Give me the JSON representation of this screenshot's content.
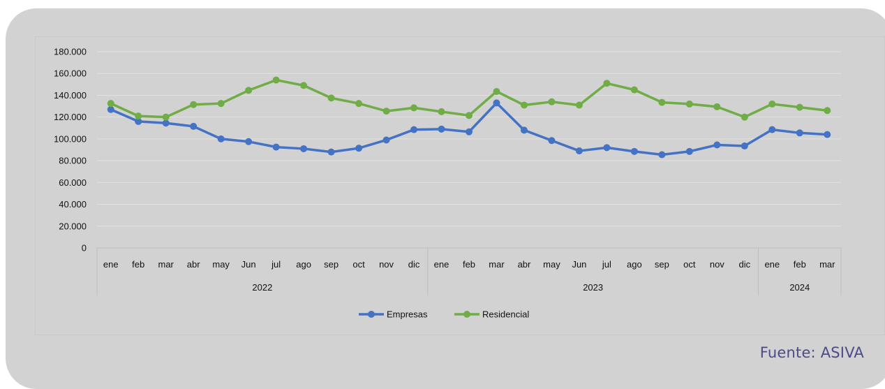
{
  "source": "Fuente: ASIVA",
  "colors": {
    "card": "#d2d2d2",
    "empresas": "#4472c4",
    "residencial": "#70ad47",
    "source_text": "#4b4a8a"
  },
  "chart_data": {
    "type": "line",
    "title": "",
    "xlabel": "",
    "ylabel": "",
    "ylim": [
      0,
      180000
    ],
    "yticks": [
      "0",
      "20.000",
      "40.000",
      "60.000",
      "80.000",
      "100.000",
      "120.000",
      "140.000",
      "160.000",
      "180.000"
    ],
    "categories": [
      "ene",
      "feb",
      "mar",
      "abr",
      "may",
      "Jun",
      "jul",
      "ago",
      "sep",
      "oct",
      "nov",
      "dic",
      "ene",
      "feb",
      "mar",
      "abr",
      "may",
      "Jun",
      "jul",
      "ago",
      "sep",
      "oct",
      "nov",
      "dic",
      "ene",
      "feb",
      "mar"
    ],
    "groups": [
      {
        "label": "2022",
        "count": 12
      },
      {
        "label": "2023",
        "count": 12
      },
      {
        "label": "2024",
        "count": 3
      }
    ],
    "grid": true,
    "legend": "bottom-center",
    "series": [
      {
        "name": "Empresas",
        "color": "#4472c4",
        "values": [
          127000,
          116000,
          114500,
          111500,
          100000,
          97500,
          92500,
          91000,
          88000,
          91500,
          99000,
          108500,
          109000,
          106500,
          133000,
          108000,
          98500,
          89000,
          92000,
          88500,
          85500,
          88500,
          94500,
          93500,
          108500,
          105500,
          104000
        ]
      },
      {
        "name": "Residencial",
        "color": "#70ad47",
        "values": [
          132500,
          121000,
          120000,
          131500,
          132500,
          144500,
          154000,
          149000,
          137500,
          132500,
          125500,
          128500,
          125000,
          121500,
          143500,
          131000,
          134000,
          131000,
          151000,
          145000,
          133500,
          132000,
          129500,
          120000,
          132000,
          129000,
          126000
        ]
      }
    ]
  }
}
